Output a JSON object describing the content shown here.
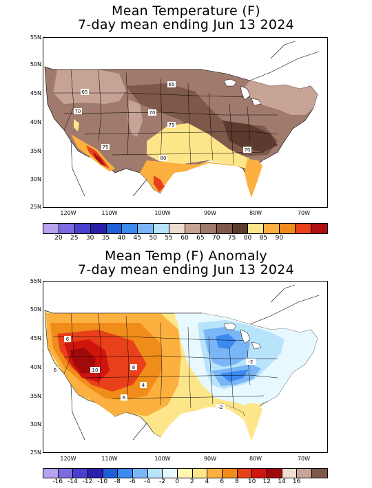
{
  "top": {
    "title_line1": "Mean Temperature (F)",
    "title_line2": "7-day mean ending Jun 13 2024",
    "lat_labels": [
      "55N",
      "50N",
      "45N",
      "40N",
      "35N",
      "30N",
      "25N"
    ],
    "lon_labels": [
      "120W",
      "110W",
      "100W",
      "90W",
      "80W",
      "70W"
    ],
    "contour_labels": [
      "65",
      "65",
      "70",
      "70",
      "75",
      "75",
      "80",
      "70"
    ],
    "legend_ticks": [
      "20",
      "25",
      "30",
      "35",
      "40",
      "45",
      "50",
      "55",
      "60",
      "65",
      "70",
      "75",
      "80",
      "85",
      "90"
    ],
    "legend_colors": [
      "#b7a3f0",
      "#7d6ae0",
      "#4a3fcf",
      "#2a1fa8",
      "#1e5fd8",
      "#3a8af0",
      "#7ab6f7",
      "#b7e3fb",
      "#f0ddd2",
      "#c6a394",
      "#a07a6c",
      "#7e5849",
      "#5c3a2e",
      "#fde68a",
      "#fbb040",
      "#f08c1a",
      "#e8401a",
      "#b01010"
    ]
  },
  "bottom": {
    "title_line1": "Mean Temp (F) Anomaly",
    "title_line2": "7-day mean ending Jun 13 2024",
    "lat_labels": [
      "55N",
      "50N",
      "45N",
      "40N",
      "35N",
      "30N",
      "25N"
    ],
    "lon_labels": [
      "120W",
      "110W",
      "100W",
      "90W",
      "80W",
      "70W"
    ],
    "contour_labels": [
      "6",
      "6",
      "10",
      "8",
      "6",
      "4",
      "-2",
      "-2"
    ],
    "legend_ticks": [
      "-16",
      "-14",
      "-12",
      "-10",
      "-8",
      "-6",
      "-4",
      "-2",
      "0",
      "2",
      "4",
      "6",
      "8",
      "10",
      "12",
      "14",
      "16"
    ],
    "legend_colors": [
      "#b7a3f0",
      "#7d6ae0",
      "#4a3fcf",
      "#2a1fa8",
      "#1e5fd8",
      "#3a8af0",
      "#7ab6f7",
      "#b7e3fb",
      "#e8f8ff",
      "#fff5b0",
      "#fde68a",
      "#fbb040",
      "#f08c1a",
      "#e8401a",
      "#d0150f",
      "#a00a0a",
      "#f0ddd2",
      "#c6a394",
      "#7e5849"
    ]
  }
}
